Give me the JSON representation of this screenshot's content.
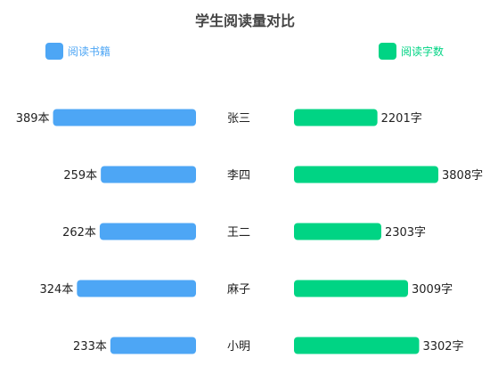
{
  "chart_data": {
    "type": "bar",
    "title": "学生阅读量对比",
    "categories": [
      "张三",
      "李四",
      "王二",
      "麻子",
      "小明"
    ],
    "series": [
      {
        "name": "阅读书籍",
        "values": [
          389,
          259,
          262,
          324,
          233
        ],
        "unit": "本",
        "color": "#4da6f5",
        "direction": "left"
      },
      {
        "name": "阅读字数",
        "values": [
          2201,
          3808,
          2303,
          3009,
          3302
        ],
        "unit": "字",
        "color": "#00d484",
        "direction": "right"
      }
    ],
    "legend": "top",
    "grid": false
  }
}
